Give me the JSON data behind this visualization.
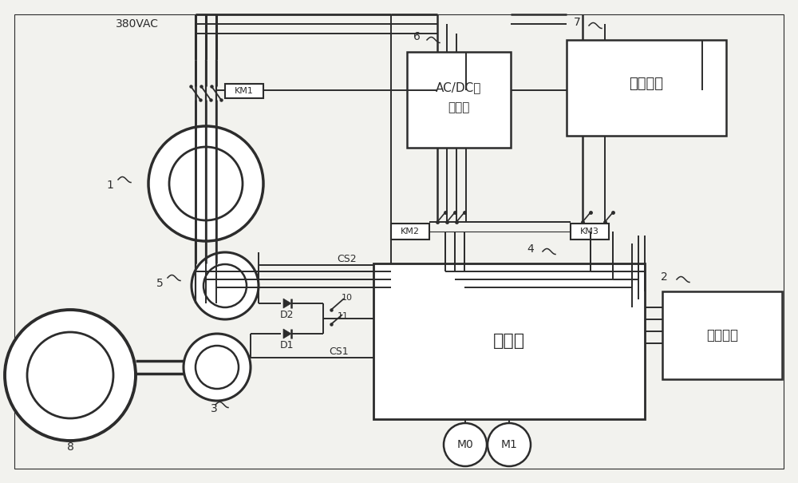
{
  "bg_color": "#f2f2ee",
  "line_color": "#2c2c2c",
  "labels": {
    "voltage": "380VAC",
    "km1": "KM1",
    "km2": "KM2",
    "km3": "KM3",
    "ac_dc_1": "AC/DC转",
    "ac_dc_2": "换模块",
    "battery": "蓄电池组",
    "ecb": "电控板",
    "ctrl": "控制面板",
    "d1": "D1",
    "d2": "D2",
    "cs1": "CS1",
    "cs2": "CS2",
    "m0": "M0",
    "m1": "M1",
    "n1": "1",
    "n2": "2",
    "n3": "3",
    "n4": "4",
    "n5": "5",
    "n6": "6",
    "n7": "7",
    "n8": "8",
    "n10": "10",
    "n11": "11"
  }
}
